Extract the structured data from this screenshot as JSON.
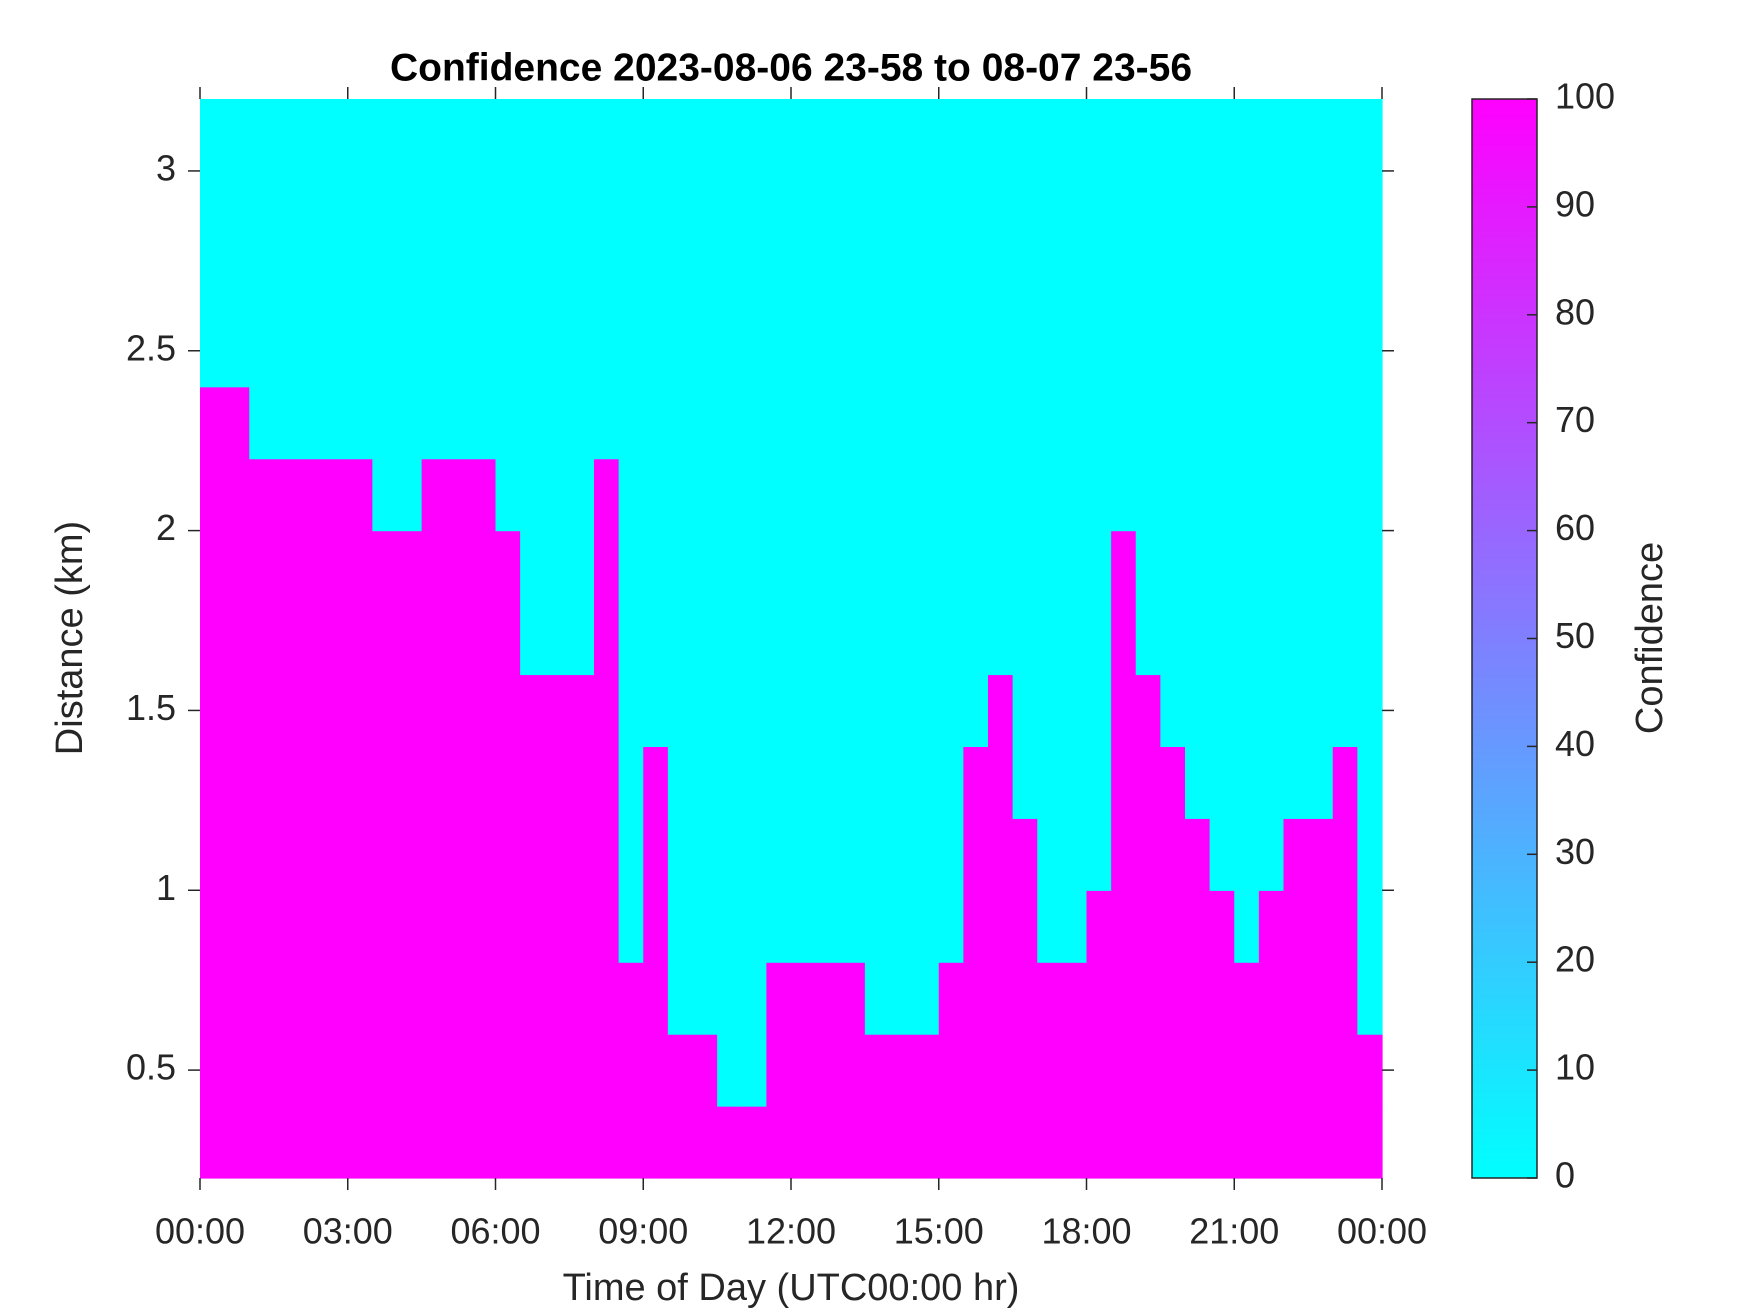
{
  "chart_data": {
    "type": "heatmap",
    "title": "Confidence 2023-08-06 23-58 to 08-07 23-56",
    "x_label": "Time of Day (UTC00:00 hr)",
    "y_label": "Distance (km)",
    "colorbar_label": "Confidence",
    "colormap": [
      "#00ffff",
      "#ff00ff"
    ],
    "clim": [
      0,
      100
    ],
    "cticks": [
      0,
      10,
      20,
      30,
      40,
      50,
      60,
      70,
      80,
      90,
      100
    ],
    "xlim": [
      0,
      24
    ],
    "xticks": [
      {
        "value": 0,
        "label": "00:00"
      },
      {
        "value": 3,
        "label": "03:00"
      },
      {
        "value": 6,
        "label": "06:00"
      },
      {
        "value": 9,
        "label": "09:00"
      },
      {
        "value": 12,
        "label": "12:00"
      },
      {
        "value": 15,
        "label": "15:00"
      },
      {
        "value": 18,
        "label": "18:00"
      },
      {
        "value": 21,
        "label": "21:00"
      },
      {
        "value": 24,
        "label": "00:00"
      }
    ],
    "ylim": [
      0.2,
      3.2
    ],
    "yticks": [
      0.5,
      1,
      1.5,
      2,
      2.5,
      3
    ],
    "x": [
      0,
      0.5,
      1,
      1.5,
      2,
      2.5,
      3,
      3.5,
      4,
      4.5,
      5,
      5.5,
      6,
      6.5,
      7,
      7.5,
      8,
      8.5,
      9,
      9.5,
      10,
      10.5,
      11,
      11.5,
      12,
      12.5,
      13,
      13.5,
      14,
      14.5,
      15,
      15.5,
      16,
      16.5,
      17,
      17.5,
      18,
      18.5,
      19,
      19.5,
      20,
      20.5,
      21,
      21.5,
      22,
      22.5,
      23,
      23.5,
      24
    ],
    "y": [
      0.2,
      0.4,
      0.6,
      0.8,
      1.0,
      1.2,
      1.4,
      1.6,
      1.8,
      2.0,
      2.2,
      2.4,
      2.6,
      2.8,
      3.0,
      3.2
    ],
    "z": [
      [
        100,
        100,
        100,
        100,
        100,
        100,
        100,
        100,
        100,
        100,
        100,
        100,
        100,
        100,
        100,
        100,
        100,
        100,
        100,
        100,
        100,
        100,
        100,
        100,
        100,
        100,
        100,
        100,
        100,
        100,
        100,
        100,
        100,
        100,
        100,
        100,
        100,
        100,
        100,
        100,
        100,
        100,
        100,
        100,
        100,
        100,
        100,
        100
      ],
      [
        100,
        100,
        100,
        100,
        100,
        100,
        100,
        100,
        100,
        100,
        100,
        100,
        100,
        100,
        100,
        100,
        100,
        100,
        100,
        100,
        100,
        0,
        0,
        100,
        100,
        100,
        100,
        100,
        100,
        100,
        100,
        100,
        100,
        100,
        100,
        100,
        100,
        100,
        100,
        100,
        100,
        100,
        100,
        100,
        100,
        100,
        100,
        100
      ],
      [
        100,
        100,
        100,
        100,
        100,
        100,
        100,
        100,
        100,
        100,
        100,
        100,
        100,
        100,
        100,
        100,
        100,
        100,
        100,
        0,
        0,
        0,
        0,
        100,
        100,
        100,
        100,
        0,
        0,
        0,
        100,
        100,
        100,
        100,
        100,
        100,
        100,
        100,
        100,
        100,
        100,
        100,
        100,
        100,
        100,
        100,
        100,
        0
      ],
      [
        100,
        100,
        100,
        100,
        100,
        100,
        100,
        100,
        100,
        100,
        100,
        100,
        100,
        100,
        100,
        100,
        100,
        0,
        100,
        0,
        0,
        0,
        0,
        0,
        0,
        0,
        0,
        0,
        0,
        0,
        0,
        100,
        100,
        100,
        0,
        0,
        100,
        100,
        100,
        100,
        100,
        100,
        0,
        100,
        100,
        100,
        100,
        0
      ],
      [
        100,
        100,
        100,
        100,
        100,
        100,
        100,
        100,
        100,
        100,
        100,
        100,
        100,
        100,
        100,
        100,
        100,
        0,
        100,
        0,
        0,
        0,
        0,
        0,
        0,
        0,
        0,
        0,
        0,
        0,
        0,
        100,
        100,
        100,
        0,
        0,
        0,
        100,
        100,
        100,
        100,
        0,
        0,
        0,
        100,
        100,
        100,
        0
      ],
      [
        100,
        100,
        100,
        100,
        100,
        100,
        100,
        100,
        100,
        100,
        100,
        100,
        100,
        100,
        100,
        100,
        100,
        0,
        100,
        0,
        0,
        0,
        0,
        0,
        0,
        0,
        0,
        0,
        0,
        0,
        0,
        100,
        100,
        0,
        0,
        0,
        0,
        100,
        100,
        100,
        0,
        0,
        0,
        0,
        0,
        0,
        100,
        0
      ],
      [
        100,
        100,
        100,
        100,
        100,
        100,
        100,
        100,
        100,
        100,
        100,
        100,
        100,
        100,
        100,
        100,
        100,
        0,
        0,
        0,
        0,
        0,
        0,
        0,
        0,
        0,
        0,
        0,
        0,
        0,
        0,
        0,
        100,
        0,
        0,
        0,
        0,
        100,
        100,
        0,
        0,
        0,
        0,
        0,
        0,
        0,
        0,
        0
      ],
      [
        100,
        100,
        100,
        100,
        100,
        100,
        100,
        100,
        100,
        100,
        100,
        100,
        100,
        0,
        0,
        0,
        100,
        0,
        0,
        0,
        0,
        0,
        0,
        0,
        0,
        0,
        0,
        0,
        0,
        0,
        0,
        0,
        0,
        0,
        0,
        0,
        0,
        100,
        0,
        0,
        0,
        0,
        0,
        0,
        0,
        0,
        0,
        0
      ],
      [
        100,
        100,
        100,
        100,
        100,
        100,
        100,
        100,
        100,
        100,
        100,
        100,
        100,
        0,
        0,
        0,
        100,
        0,
        0,
        0,
        0,
        0,
        0,
        0,
        0,
        0,
        0,
        0,
        0,
        0,
        0,
        0,
        0,
        0,
        0,
        0,
        0,
        100,
        0,
        0,
        0,
        0,
        0,
        0,
        0,
        0,
        0,
        0
      ],
      [
        100,
        100,
        100,
        100,
        100,
        100,
        100,
        0,
        0,
        100,
        100,
        100,
        0,
        0,
        0,
        0,
        100,
        0,
        0,
        0,
        0,
        0,
        0,
        0,
        0,
        0,
        0,
        0,
        0,
        0,
        0,
        0,
        0,
        0,
        0,
        0,
        0,
        0,
        0,
        0,
        0,
        0,
        0,
        0,
        0,
        0,
        0,
        0
      ],
      [
        100,
        100,
        0,
        0,
        0,
        0,
        0,
        0,
        0,
        0,
        0,
        0,
        0,
        0,
        0,
        0,
        0,
        0,
        0,
        0,
        0,
        0,
        0,
        0,
        0,
        0,
        0,
        0,
        0,
        0,
        0,
        0,
        0,
        0,
        0,
        0,
        0,
        0,
        0,
        0,
        0,
        0,
        0,
        0,
        0,
        0,
        0,
        0
      ],
      [
        0,
        0,
        0,
        0,
        0,
        0,
        0,
        0,
        0,
        0,
        0,
        0,
        0,
        0,
        0,
        0,
        0,
        0,
        0,
        0,
        0,
        0,
        0,
        0,
        0,
        0,
        0,
        0,
        0,
        0,
        0,
        0,
        0,
        0,
        0,
        0,
        0,
        0,
        0,
        0,
        0,
        0,
        0,
        0,
        0,
        0,
        0,
        0
      ],
      [
        0,
        0,
        0,
        0,
        0,
        0,
        0,
        0,
        0,
        0,
        0,
        0,
        0,
        0,
        0,
        0,
        0,
        0,
        0,
        0,
        0,
        0,
        0,
        0,
        0,
        0,
        0,
        0,
        0,
        0,
        0,
        0,
        0,
        0,
        0,
        0,
        0,
        0,
        0,
        0,
        0,
        0,
        0,
        0,
        0,
        0,
        0,
        0
      ],
      [
        0,
        0,
        0,
        0,
        0,
        0,
        0,
        0,
        0,
        0,
        0,
        0,
        0,
        0,
        0,
        0,
        0,
        0,
        0,
        0,
        0,
        0,
        0,
        0,
        0,
        0,
        0,
        0,
        0,
        0,
        0,
        0,
        0,
        0,
        0,
        0,
        0,
        0,
        0,
        0,
        0,
        0,
        0,
        0,
        0,
        0,
        0,
        0
      ],
      [
        0,
        0,
        0,
        0,
        0,
        0,
        0,
        0,
        0,
        0,
        0,
        0,
        0,
        0,
        0,
        0,
        0,
        0,
        0,
        0,
        0,
        0,
        0,
        0,
        0,
        0,
        0,
        0,
        0,
        0,
        0,
        0,
        0,
        0,
        0,
        0,
        0,
        0,
        0,
        0,
        0,
        0,
        0,
        0,
        0,
        0,
        0,
        0
      ]
    ]
  }
}
